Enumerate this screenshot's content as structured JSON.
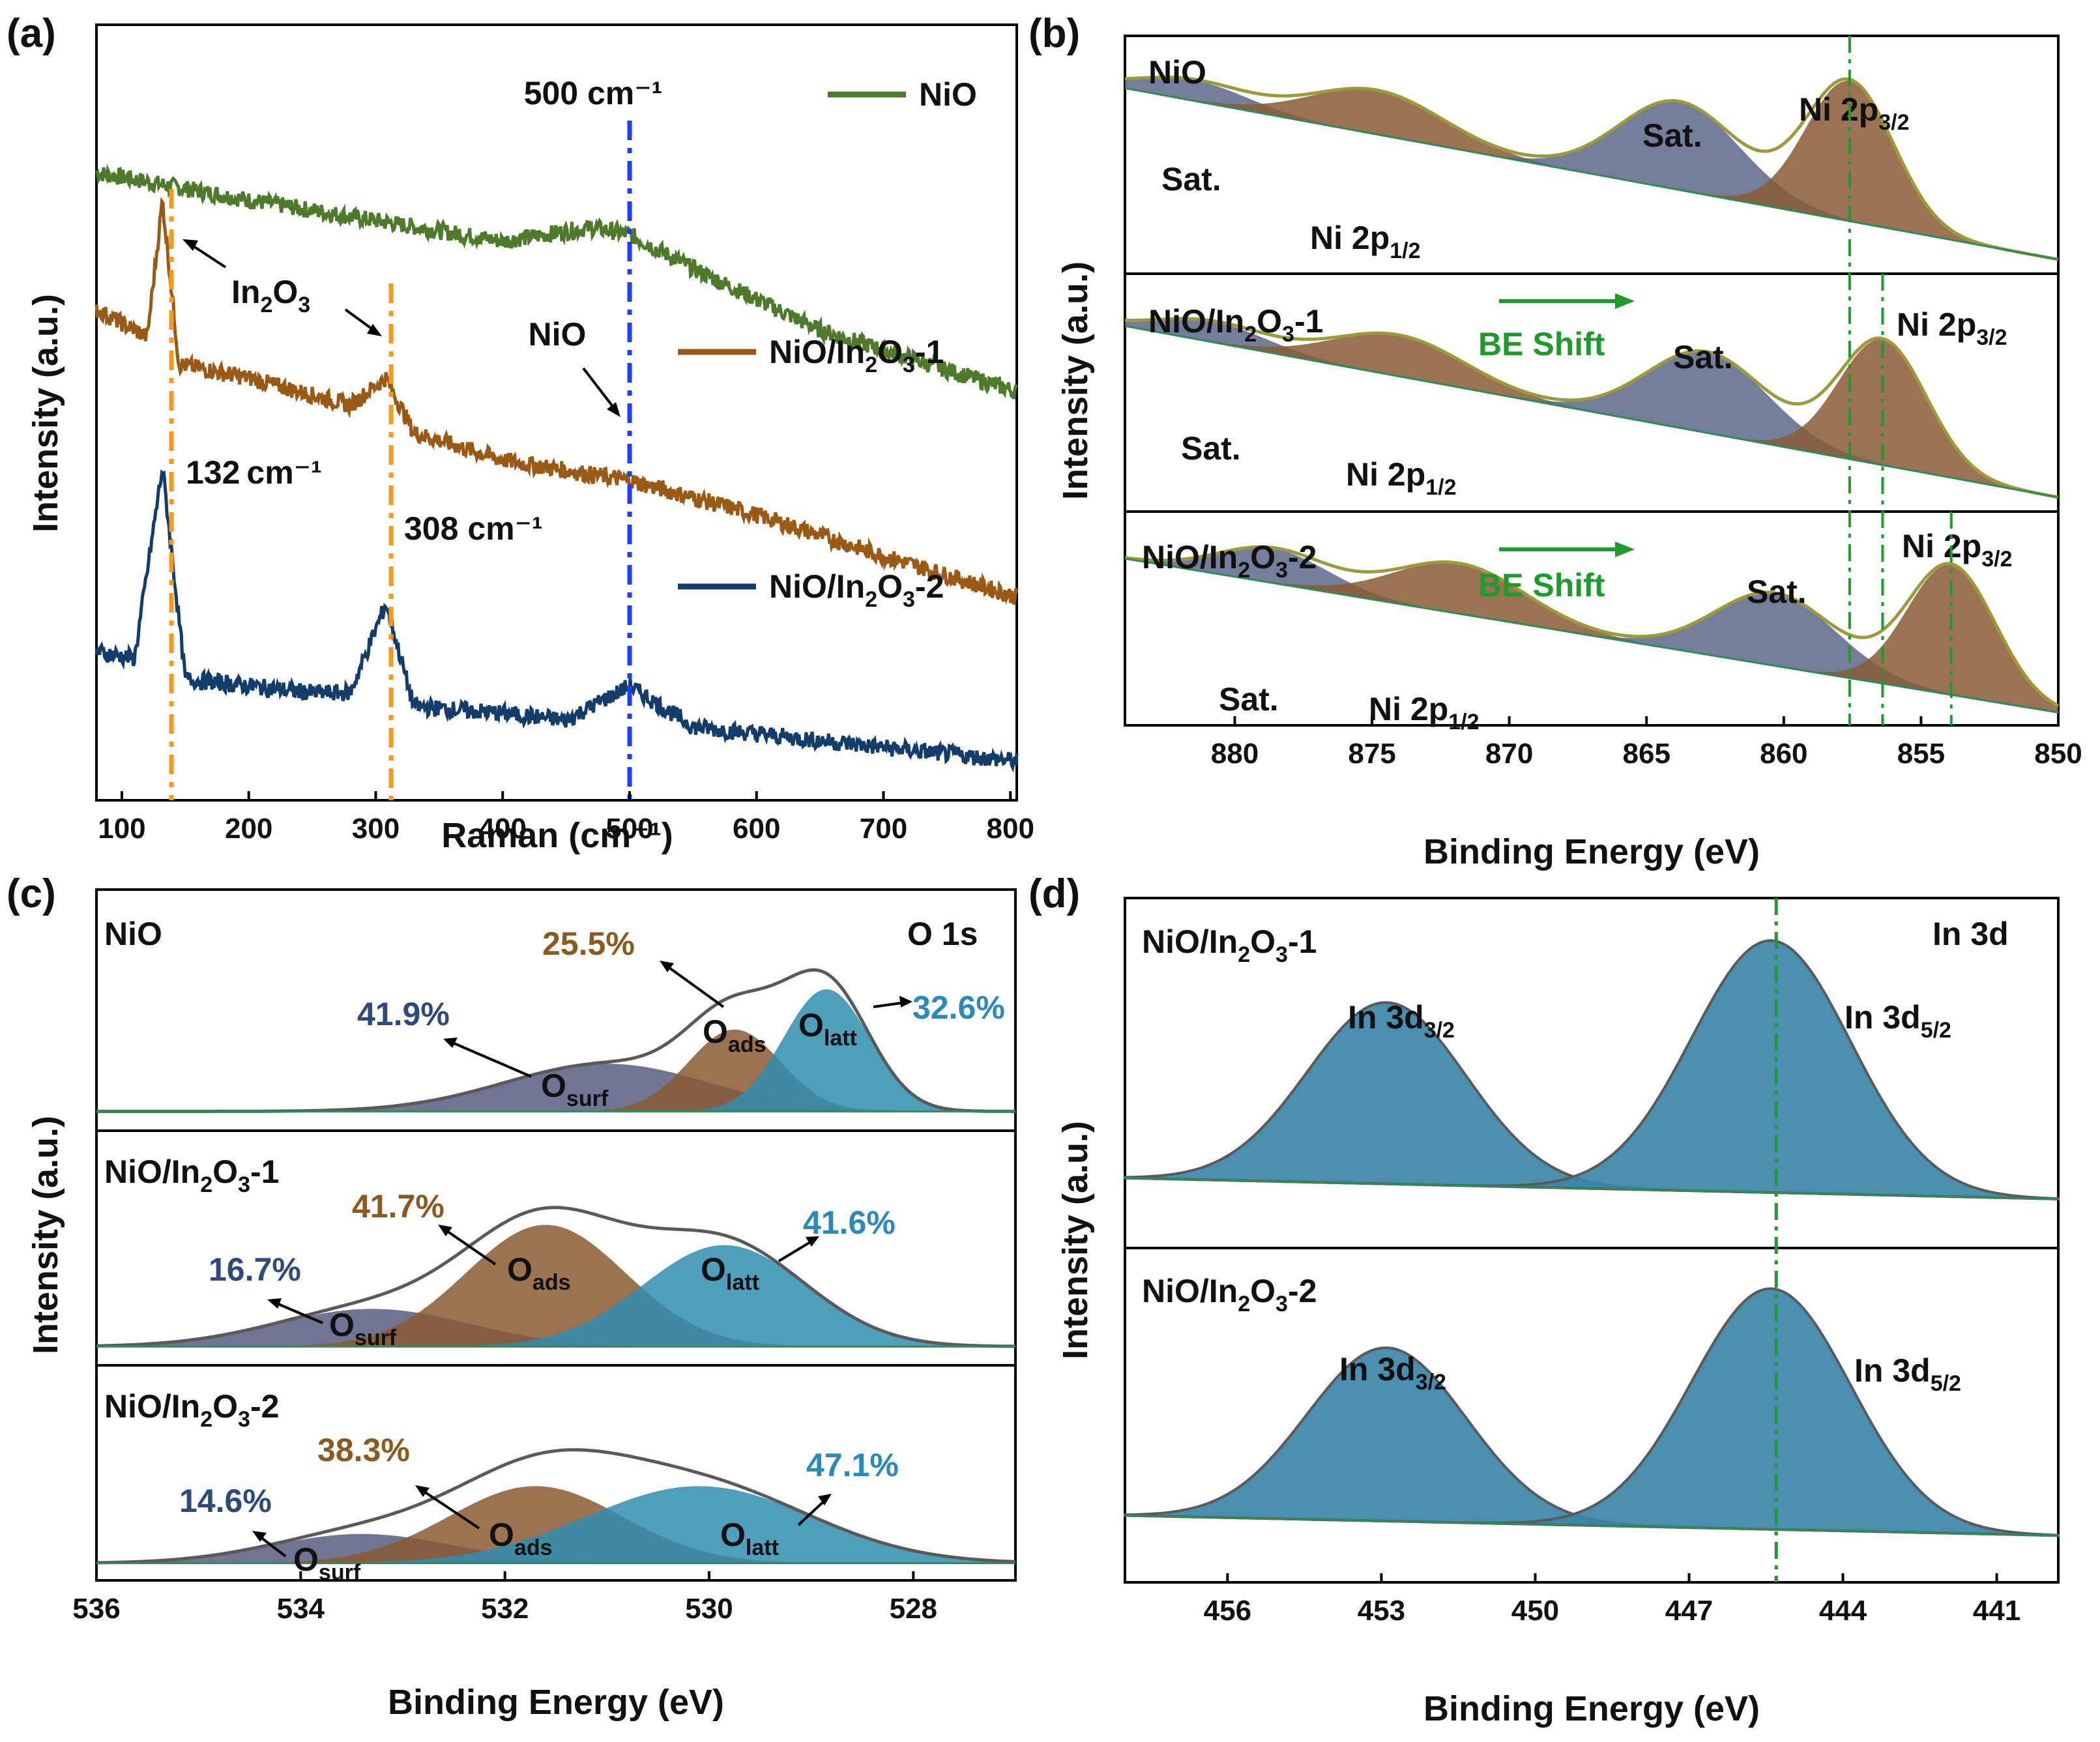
{
  "panels": {
    "a": {
      "letter": "(a)"
    },
    "b": {
      "letter": "(b)"
    },
    "c": {
      "letter": "(c)"
    },
    "d": {
      "letter": "(d)"
    }
  },
  "colors": {
    "nio_green": "#4f7a2c",
    "orange_line": "#f59a1b",
    "blue_line": "#1d3dff",
    "nio_in2o3_1": "#9a5a16",
    "nio_in2o3_2": "#123c6a",
    "sat_fill": "#5c6687",
    "ni_fill": "#8a5a34",
    "osurf_fill": "#565d80",
    "oads_fill": "#8a5a33",
    "olatt_fill": "#2f8db0",
    "in_fill": "#3b86a8",
    "envelope_olive": "#9c9b3c",
    "envelope_grey": "#5a5a5a",
    "green_dash": "#1f9a2c",
    "pct_blue": "#2f4a7a",
    "pct_brown": "#8a5a1f",
    "pct_cyan": "#2a8ab8"
  },
  "chart_data": [
    {
      "panel": "a",
      "type": "line",
      "title": "",
      "xlabel": "Raman (cm⁻¹)",
      "ylabel": "Intensity (a.u.)",
      "xlim": [
        80,
        805
      ],
      "xticks": [
        "100",
        "200",
        "300",
        "400",
        "500",
        "600",
        "700",
        "800"
      ],
      "series": [
        {
          "name": "NiO",
          "x": [
            80,
            200,
            300,
            400,
            470,
            500,
            550,
            650,
            805
          ],
          "y": [
            0.86,
            0.82,
            0.79,
            0.76,
            0.78,
            0.77,
            0.72,
            0.63,
            0.54
          ]
        },
        {
          "name": "NiO/In2O3-1",
          "x": [
            80,
            120,
            132,
            145,
            200,
            280,
            308,
            330,
            400,
            500,
            600,
            700,
            805
          ],
          "y": [
            0.66,
            0.62,
            0.82,
            0.58,
            0.56,
            0.52,
            0.56,
            0.48,
            0.44,
            0.41,
            0.36,
            0.3,
            0.24
          ]
        },
        {
          "name": "NiO/In2O3-2",
          "x": [
            80,
            110,
            132,
            150,
            200,
            250,
            280,
            308,
            330,
            400,
            450,
            500,
            550,
            600,
            700,
            805
          ],
          "y": [
            0.16,
            0.15,
            0.43,
            0.12,
            0.11,
            0.1,
            0.1,
            0.23,
            0.08,
            0.07,
            0.06,
            0.11,
            0.05,
            0.04,
            0.02,
            0.0
          ]
        }
      ],
      "labels": {
        "peak500": "500 cm⁻¹",
        "in2o3": "In",
        "in2o3_sub2": "2",
        "in2o3_o": "O",
        "in2o3_sub3": "3",
        "nio": "NiO",
        "p132": "132 cm⁻¹",
        "p308": "308 cm⁻¹"
      },
      "legend": [
        "NiO",
        "NiO/In2O3-1",
        "NiO/In2O3-2"
      ],
      "legend_location": "right"
    },
    {
      "panel": "b",
      "type": "area",
      "xlabel": "Binding Energy (eV)",
      "ylabel": "Intensity (a.u.)",
      "xlim": [
        884,
        850
      ],
      "xticks": [
        "880",
        "875",
        "870",
        "865",
        "860",
        "855",
        "850"
      ],
      "subpanels": [
        {
          "name": "NiO",
          "peaks": [
            {
              "label": "Sat.",
              "center": 881.5
            },
            {
              "label": "Ni 2p1/2",
              "center": 874.8
            },
            {
              "label": "Sat.",
              "center": 863.8
            },
            {
              "label": "Ni 2p3/2",
              "center": 857.6
            }
          ]
        },
        {
          "name": "NiO/In2O3-1",
          "shift_label": "BE Shift",
          "peaks": [
            {
              "label": "Sat.",
              "center": 880.8
            },
            {
              "label": "Ni 2p1/2",
              "center": 874.0
            },
            {
              "label": "Sat.",
              "center": 862.8
            },
            {
              "label": "Ni 2p3/2",
              "center": 856.4
            }
          ]
        },
        {
          "name": "NiO/In2O3-2",
          "shift_label": "BE Shift",
          "peaks": [
            {
              "label": "Sat.",
              "center": 878.6
            },
            {
              "label": "Ni 2p1/2",
              "center": 871.8
            },
            {
              "label": "Sat.",
              "center": 860.3
            },
            {
              "label": "Ni 2p3/2",
              "center": 853.9
            }
          ]
        }
      ],
      "reference_lines": [
        857.6,
        856.4,
        853.9
      ]
    },
    {
      "panel": "c",
      "type": "area",
      "xlabel": "Binding Energy (eV)",
      "ylabel": "Intensity (a.u.)",
      "xlim": [
        536,
        527
      ],
      "xticks": [
        "536",
        "534",
        "532",
        "530",
        "528"
      ],
      "corner_label": "O 1s",
      "subpanels": [
        {
          "name": "NiO",
          "components": [
            {
              "label": "Osurf",
              "pct": "41.9%",
              "center": 531.0
            },
            {
              "label": "Oads",
              "pct": "25.5%",
              "center": 529.75
            },
            {
              "label": "Olatt",
              "pct": "32.6%",
              "center": 528.85
            }
          ]
        },
        {
          "name": "NiO/In2O3-1",
          "components": [
            {
              "label": "Osurf",
              "pct": "16.7%",
              "center": 533.3
            },
            {
              "label": "Oads",
              "pct": "41.7%",
              "center": 531.6
            },
            {
              "label": "Olatt",
              "pct": "41.6%",
              "center": 529.85
            }
          ]
        },
        {
          "name": "NiO/In2O3-2",
          "components": [
            {
              "label": "Osurf",
              "pct": "14.6%",
              "center": 533.4
            },
            {
              "label": "Oads",
              "pct": "38.3%",
              "center": 531.7
            },
            {
              "label": "Olatt",
              "pct": "47.1%",
              "center": 530.1
            }
          ]
        }
      ]
    },
    {
      "panel": "d",
      "type": "area",
      "xlabel": "Binding Energy (eV)",
      "ylabel": "Intensity (a.u.)",
      "xlim": [
        458.0,
        439.8
      ],
      "xticks": [
        "456",
        "453",
        "450",
        "447",
        "444",
        "441"
      ],
      "corner_label": "In 3d",
      "subpanels": [
        {
          "name": "NiO/In2O3-1",
          "peaks": [
            {
              "label": "In 3d3/2",
              "center": 452.9
            },
            {
              "label": "In 3d5/2",
              "center": 445.4
            }
          ]
        },
        {
          "name": "NiO/In2O3-2",
          "peaks": [
            {
              "label": "In 3d3/2",
              "center": 452.9
            },
            {
              "label": "In 3d5/2",
              "center": 445.4
            }
          ]
        }
      ],
      "reference_line": 445.3
    }
  ],
  "text": {
    "nio": "NiO",
    "nio_in_1_a": "NiO/In",
    "nio_in_1_b": "O",
    "nio_in_1_c": "-1",
    "nio_in_2_c": "-2",
    "sub2": "2",
    "sub3": "3",
    "sat": "Sat.",
    "ni2p": "Ni 2p",
    "sub12": "1/2",
    "sub32": "3/2",
    "sub52": "5/2",
    "be_shift": "BE Shift",
    "o1s": "O 1s",
    "in3d": "In 3d",
    "in3d_prefix": "In 3d",
    "o": "O",
    "surf": "surf",
    "ads": "ads",
    "latt": "latt"
  }
}
